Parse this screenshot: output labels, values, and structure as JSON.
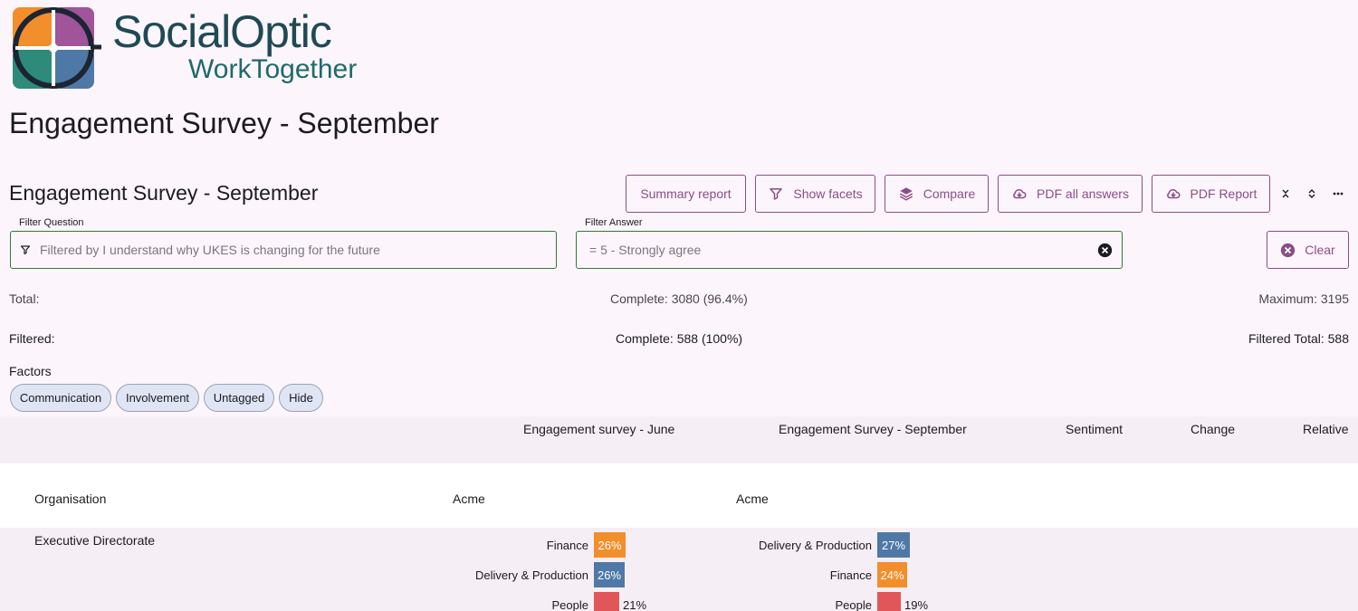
{
  "logo": {
    "text_main": "SocialOptic",
    "text_sub": "WorkTogether"
  },
  "page": {
    "title": "Engagement Survey - September"
  },
  "section": {
    "title": "Engagement Survey - September"
  },
  "toolbar": {
    "summary_label": "Summary report",
    "facets_label": "Show facets",
    "compare_label": "Compare",
    "pdf_all_label": "PDF all answers",
    "pdf_report_label": "PDF Report"
  },
  "filters": {
    "question_label": "Filter Question",
    "question_placeholder": "Filtered by I understand why UKES is changing for the future",
    "answer_label": "Filter Answer",
    "answer_value": "= 5 - Strongly agree",
    "clear_label": "Clear"
  },
  "stats": {
    "total_label": "Total:",
    "complete_total": "Complete: 3080 (96.4%)",
    "maximum": "Maximum: 3195",
    "filtered_label": "Filtered:",
    "complete_filtered": "Complete: 588 (100%)",
    "filtered_total": "Filtered Total: 588"
  },
  "factors": {
    "label": "Factors",
    "chips": [
      "Communication",
      "Involvement",
      "Untagged",
      "Hide"
    ]
  },
  "table": {
    "columns": [
      "Engagement survey - June",
      "Engagement Survey - September",
      "Sentiment",
      "Change",
      "Relative"
    ],
    "org_row": {
      "label": "Organisation",
      "june": "Acme",
      "september": "Acme"
    },
    "rows": [
      {
        "label": "Executive Directorate",
        "june": [
          {
            "name": "Finance",
            "value": "26%",
            "color": "#f28e2b"
          },
          {
            "name": "Delivery & Production",
            "value": "26%",
            "color": "#4e79a7"
          },
          {
            "name": "People",
            "value": "21%",
            "color": "#e15759"
          }
        ],
        "september": [
          {
            "name": "Delivery & Production",
            "value": "27%",
            "color": "#4e79a7"
          },
          {
            "name": "Finance",
            "value": "24%",
            "color": "#f28e2b"
          },
          {
            "name": "People",
            "value": "19%",
            "color": "#e15759"
          }
        ]
      }
    ]
  },
  "colors": {
    "accent": "#8a4e86",
    "input_border": "#2e7d32",
    "chip_bg": "#dfe5f4"
  }
}
